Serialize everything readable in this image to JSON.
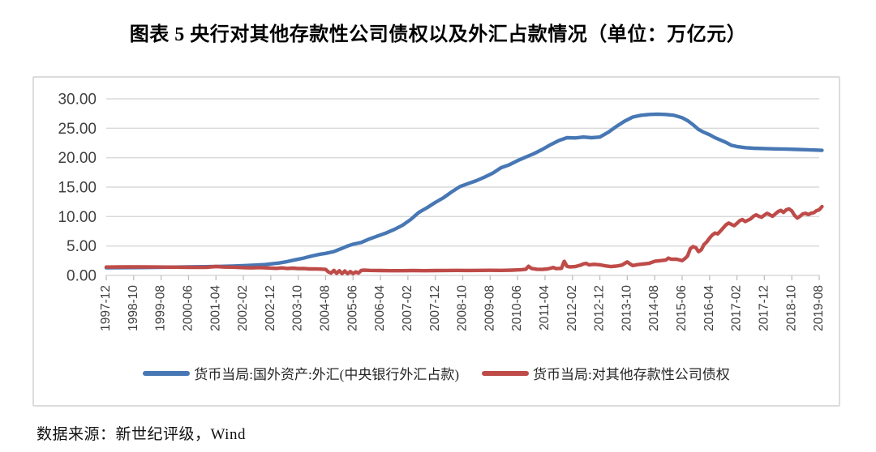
{
  "title": "图表 5  央行对其他存款性公司债权以及外汇占款情况（单位：万亿元）",
  "source": "数据来源：新世纪评级，Wind",
  "colors": {
    "grid": "#d9d9d9",
    "tick": "#bfbfbf",
    "axis_text": "#404040",
    "blue_series": "#4777b4",
    "red_series": "#be4b48"
  },
  "chart_data": {
    "type": "line",
    "title": "图表 5  央行对其他存款性公司债权以及外汇占款情况（单位：万亿元）",
    "unit": "万亿元",
    "grid": true,
    "legend_position": "bottom",
    "ylim": [
      0,
      30
    ],
    "y_tick_labels": [
      "0.00",
      "5.00",
      "10.00",
      "15.00",
      "20.00",
      "25.00",
      "30.00"
    ],
    "x_tick_labels": [
      "1997-12",
      "1998-10",
      "1999-08",
      "2000-06",
      "2001-04",
      "2002-02",
      "2002-12",
      "2003-10",
      "2004-08",
      "2005-06",
      "2006-04",
      "2007-02",
      "2007-12",
      "2008-10",
      "2009-08",
      "2010-06",
      "2011-04",
      "2012-02",
      "2012-12",
      "2013-10",
      "2014-08",
      "2015-06",
      "2016-04",
      "2017-02",
      "2017-12",
      "2018-10",
      "2019-08"
    ],
    "months_per_tick": 10,
    "x_month_range": [
      0,
      260
    ],
    "series": [
      {
        "name": "货币当局:国外资产:外汇(中央银行外汇占款)",
        "color": "#4777b4",
        "points": [
          [
            0,
            1.3
          ],
          [
            6,
            1.32
          ],
          [
            12,
            1.34
          ],
          [
            18,
            1.38
          ],
          [
            24,
            1.41
          ],
          [
            30,
            1.45
          ],
          [
            36,
            1.48
          ],
          [
            42,
            1.54
          ],
          [
            46,
            1.58
          ],
          [
            50,
            1.65
          ],
          [
            54,
            1.75
          ],
          [
            58,
            1.85
          ],
          [
            60,
            1.95
          ],
          [
            63,
            2.1
          ],
          [
            66,
            2.35
          ],
          [
            69,
            2.65
          ],
          [
            72,
            2.95
          ],
          [
            75,
            3.3
          ],
          [
            78,
            3.6
          ],
          [
            80,
            3.75
          ],
          [
            83,
            4.05
          ],
          [
            86,
            4.6
          ],
          [
            88,
            5.0
          ],
          [
            90,
            5.3
          ],
          [
            93,
            5.6
          ],
          [
            96,
            6.2
          ],
          [
            99,
            6.7
          ],
          [
            102,
            7.2
          ],
          [
            105,
            7.8
          ],
          [
            108,
            8.5
          ],
          [
            111,
            9.5
          ],
          [
            114,
            10.7
          ],
          [
            117,
            11.5
          ],
          [
            120,
            12.4
          ],
          [
            123,
            13.2
          ],
          [
            126,
            14.2
          ],
          [
            129,
            15.1
          ],
          [
            132,
            15.6
          ],
          [
            135,
            16.1
          ],
          [
            138,
            16.7
          ],
          [
            141,
            17.4
          ],
          [
            144,
            18.3
          ],
          [
            147,
            18.8
          ],
          [
            150,
            19.5
          ],
          [
            153,
            20.1
          ],
          [
            156,
            20.7
          ],
          [
            159,
            21.4
          ],
          [
            162,
            22.2
          ],
          [
            165,
            22.9
          ],
          [
            168,
            23.4
          ],
          [
            171,
            23.35
          ],
          [
            174,
            23.5
          ],
          [
            177,
            23.4
          ],
          [
            180,
            23.5
          ],
          [
            183,
            24.3
          ],
          [
            186,
            25.3
          ],
          [
            189,
            26.2
          ],
          [
            192,
            26.9
          ],
          [
            195,
            27.2
          ],
          [
            198,
            27.35
          ],
          [
            201,
            27.4
          ],
          [
            204,
            27.35
          ],
          [
            207,
            27.2
          ],
          [
            210,
            26.8
          ],
          [
            212,
            26.3
          ],
          [
            214,
            25.6
          ],
          [
            216,
            24.8
          ],
          [
            218,
            24.3
          ],
          [
            220,
            23.9
          ],
          [
            222,
            23.4
          ],
          [
            224,
            23.0
          ],
          [
            226,
            22.6
          ],
          [
            228,
            22.1
          ],
          [
            230,
            21.9
          ],
          [
            233,
            21.7
          ],
          [
            236,
            21.6
          ],
          [
            240,
            21.55
          ],
          [
            244,
            21.5
          ],
          [
            248,
            21.45
          ],
          [
            252,
            21.4
          ],
          [
            256,
            21.35
          ],
          [
            261,
            21.25
          ]
        ]
      },
      {
        "name": "货币当局:对其他存款性公司债权",
        "color": "#be4b48",
        "points": [
          [
            0,
            1.42
          ],
          [
            6,
            1.44
          ],
          [
            12,
            1.45
          ],
          [
            18,
            1.43
          ],
          [
            24,
            1.4
          ],
          [
            30,
            1.38
          ],
          [
            36,
            1.36
          ],
          [
            40,
            1.52
          ],
          [
            43,
            1.42
          ],
          [
            46,
            1.4
          ],
          [
            50,
            1.32
          ],
          [
            53,
            1.28
          ],
          [
            56,
            1.34
          ],
          [
            59,
            1.26
          ],
          [
            62,
            1.2
          ],
          [
            64,
            1.28
          ],
          [
            66,
            1.18
          ],
          [
            68,
            1.24
          ],
          [
            70,
            1.15
          ],
          [
            72,
            1.18
          ],
          [
            74,
            1.1
          ],
          [
            76,
            1.12
          ],
          [
            78,
            1.08
          ],
          [
            80,
            1.02
          ],
          [
            81,
            0.6
          ],
          [
            82,
            0.4
          ],
          [
            83,
            0.85
          ],
          [
            84,
            0.35
          ],
          [
            85,
            0.8
          ],
          [
            86,
            0.3
          ],
          [
            87,
            0.75
          ],
          [
            88,
            0.3
          ],
          [
            89,
            0.65
          ],
          [
            90,
            0.32
          ],
          [
            91,
            0.6
          ],
          [
            92,
            0.4
          ],
          [
            93,
            0.85
          ],
          [
            94,
            0.9
          ],
          [
            96,
            0.85
          ],
          [
            100,
            0.82
          ],
          [
            104,
            0.8
          ],
          [
            108,
            0.8
          ],
          [
            112,
            0.82
          ],
          [
            116,
            0.8
          ],
          [
            120,
            0.82
          ],
          [
            124,
            0.84
          ],
          [
            128,
            0.86
          ],
          [
            132,
            0.84
          ],
          [
            136,
            0.86
          ],
          [
            140,
            0.87
          ],
          [
            144,
            0.86
          ],
          [
            148,
            0.9
          ],
          [
            151,
            0.95
          ],
          [
            153,
            1.05
          ],
          [
            154,
            1.55
          ],
          [
            155,
            1.2
          ],
          [
            157,
            1.05
          ],
          [
            159,
            1.02
          ],
          [
            161,
            1.1
          ],
          [
            163,
            1.35
          ],
          [
            164,
            1.15
          ],
          [
            166,
            1.2
          ],
          [
            167,
            2.4
          ],
          [
            168,
            1.55
          ],
          [
            169,
            1.45
          ],
          [
            171,
            1.5
          ],
          [
            173,
            1.75
          ],
          [
            174,
            1.95
          ],
          [
            175,
            2.05
          ],
          [
            176,
            1.8
          ],
          [
            178,
            1.88
          ],
          [
            180,
            1.8
          ],
          [
            182,
            1.62
          ],
          [
            184,
            1.5
          ],
          [
            186,
            1.58
          ],
          [
            188,
            1.75
          ],
          [
            190,
            2.3
          ],
          [
            191,
            1.95
          ],
          [
            192,
            1.68
          ],
          [
            194,
            1.85
          ],
          [
            196,
            1.95
          ],
          [
            198,
            2.05
          ],
          [
            200,
            2.4
          ],
          [
            202,
            2.5
          ],
          [
            204,
            2.6
          ],
          [
            205,
            2.95
          ],
          [
            206,
            2.75
          ],
          [
            208,
            2.75
          ],
          [
            210,
            2.5
          ],
          [
            211,
            2.85
          ],
          [
            212,
            3.3
          ],
          [
            213,
            4.55
          ],
          [
            214,
            4.9
          ],
          [
            215,
            4.7
          ],
          [
            216,
            4.05
          ],
          [
            217,
            4.35
          ],
          [
            218,
            5.25
          ],
          [
            219,
            5.7
          ],
          [
            220,
            6.35
          ],
          [
            221,
            6.85
          ],
          [
            222,
            7.2
          ],
          [
            223,
            7.05
          ],
          [
            224,
            7.55
          ],
          [
            226,
            8.6
          ],
          [
            227,
            8.9
          ],
          [
            228,
            8.65
          ],
          [
            229,
            8.45
          ],
          [
            230,
            8.85
          ],
          [
            231,
            9.3
          ],
          [
            232,
            9.5
          ],
          [
            233,
            9.15
          ],
          [
            235,
            9.6
          ],
          [
            236,
            10.05
          ],
          [
            237,
            10.3
          ],
          [
            238,
            10.05
          ],
          [
            239,
            9.9
          ],
          [
            240,
            10.25
          ],
          [
            241,
            10.55
          ],
          [
            242,
            10.3
          ],
          [
            243,
            10.05
          ],
          [
            244,
            10.45
          ],
          [
            245,
            10.85
          ],
          [
            246,
            11.05
          ],
          [
            247,
            10.7
          ],
          [
            248,
            11.15
          ],
          [
            249,
            11.3
          ],
          [
            250,
            10.95
          ],
          [
            251,
            10.2
          ],
          [
            252,
            9.75
          ],
          [
            253,
            10.05
          ],
          [
            254,
            10.45
          ],
          [
            255,
            10.55
          ],
          [
            256,
            10.35
          ],
          [
            257,
            10.55
          ],
          [
            258,
            10.65
          ],
          [
            259,
            11.0
          ],
          [
            260,
            11.15
          ],
          [
            261,
            11.7
          ]
        ]
      }
    ]
  }
}
